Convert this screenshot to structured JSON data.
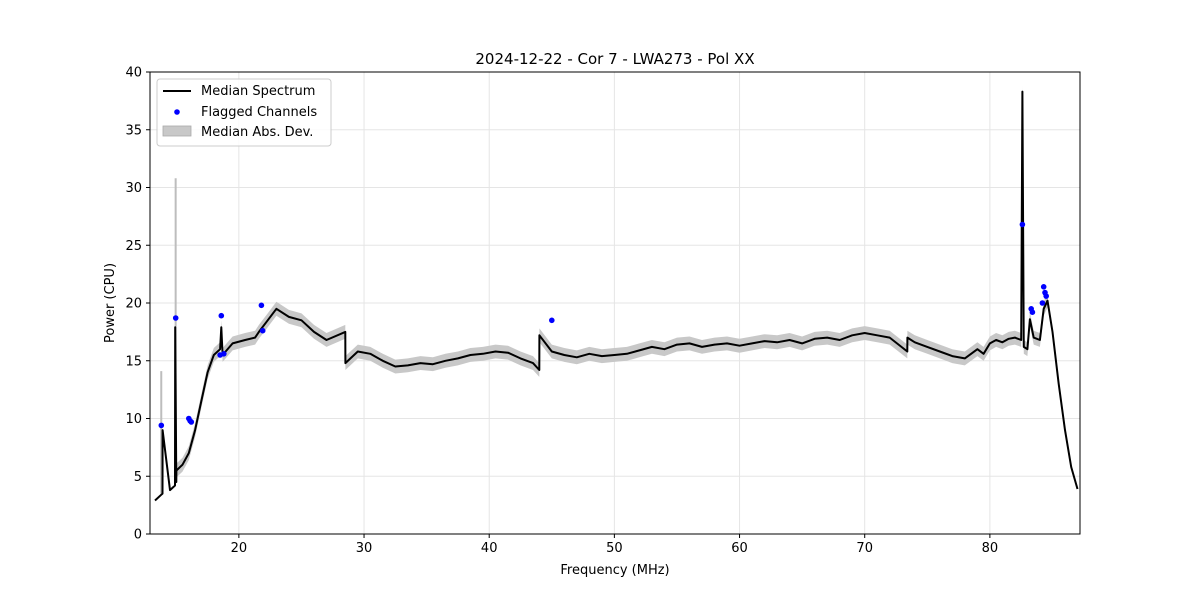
{
  "chart_data": {
    "type": "line",
    "title": "2024-12-22 - Cor 7 - LWA273 - Pol XX",
    "xlabel": "Frequency (MHz)",
    "ylabel": "Power (CPU)",
    "xlim": [
      12.9,
      87.2
    ],
    "ylim": [
      0,
      40
    ],
    "xticks": [
      20,
      30,
      40,
      50,
      60,
      70,
      80
    ],
    "yticks": [
      0,
      5,
      10,
      15,
      20,
      25,
      30,
      35,
      40
    ],
    "grid": true,
    "legend_position": "top-left",
    "legend": [
      "Median Spectrum",
      "Flagged Channels",
      "Median Abs. Dev."
    ],
    "colors": {
      "line": "#000000",
      "flagged": "#0000ff",
      "band": "#c8c8c8",
      "grid": "#e5e5e5"
    },
    "series": [
      {
        "name": "Median Spectrum",
        "x": [
          13.3,
          13.8,
          13.9,
          13.91,
          14.5,
          14.9,
          14.91,
          15.0,
          15.01,
          15.5,
          16.0,
          16.5,
          17.0,
          17.5,
          18.0,
          18.5,
          18.6,
          18.7,
          19.5,
          20.5,
          21.3,
          21.6,
          22.3,
          23.0,
          24.0,
          25.0,
          26.0,
          27.0,
          28.5,
          28.51,
          29.5,
          30.5,
          31.5,
          32.5,
          33.5,
          34.5,
          35.5,
          36.5,
          37.5,
          38.5,
          39.5,
          40.5,
          41.5,
          42.5,
          43.5,
          44.0,
          44.01,
          45.0,
          46.0,
          47.0,
          48.0,
          49.0,
          50.0,
          51.0,
          52.0,
          53.0,
          54.0,
          55.0,
          56.0,
          57.0,
          58.0,
          59.0,
          60.0,
          61.0,
          62.0,
          63.0,
          64.0,
          65.0,
          66.0,
          67.0,
          68.0,
          69.0,
          70.0,
          71.0,
          72.0,
          73.4,
          73.41,
          74.0,
          75.0,
          76.0,
          77.0,
          78.0,
          79.0,
          79.5,
          80.0,
          80.5,
          81.0,
          81.5,
          82.0,
          82.5,
          82.6,
          82.7,
          82.71,
          83.0,
          83.2,
          83.5,
          84.0,
          84.3,
          84.6,
          85.0,
          85.5,
          86.0,
          86.5,
          87.0
        ],
        "y": [
          2.9,
          3.4,
          3.5,
          9.0,
          3.8,
          4.2,
          17.9,
          4.5,
          5.5,
          6.0,
          7.0,
          9.0,
          11.5,
          14.0,
          15.5,
          16.0,
          17.9,
          15.5,
          16.5,
          16.8,
          17.0,
          17.5,
          18.5,
          19.5,
          18.8,
          18.5,
          17.5,
          16.8,
          17.5,
          14.8,
          15.8,
          15.6,
          15.0,
          14.5,
          14.6,
          14.8,
          14.7,
          15.0,
          15.2,
          15.5,
          15.6,
          15.8,
          15.7,
          15.2,
          14.8,
          14.2,
          17.2,
          15.8,
          15.5,
          15.3,
          15.6,
          15.4,
          15.5,
          15.6,
          15.9,
          16.2,
          16.0,
          16.4,
          16.5,
          16.2,
          16.4,
          16.5,
          16.3,
          16.5,
          16.7,
          16.6,
          16.8,
          16.5,
          16.9,
          17.0,
          16.8,
          17.2,
          17.4,
          17.2,
          17.0,
          15.8,
          17.0,
          16.6,
          16.2,
          15.8,
          15.4,
          15.2,
          16.0,
          15.6,
          16.5,
          16.8,
          16.6,
          16.9,
          17.0,
          16.8,
          38.3,
          17.0,
          16.2,
          16.0,
          18.6,
          17.0,
          16.8,
          19.5,
          20.2,
          17.5,
          13.0,
          9.0,
          5.8,
          3.9
        ]
      },
      {
        "name": "Flagged Channels",
        "x": [
          13.8,
          14.95,
          16.0,
          16.1,
          16.2,
          18.5,
          18.6,
          18.8,
          21.8,
          21.9,
          45.0,
          82.6,
          83.3,
          83.4,
          84.2,
          84.3,
          84.4,
          84.5
        ],
        "y": [
          9.4,
          18.7,
          10.0,
          9.8,
          9.7,
          15.5,
          18.9,
          15.6,
          19.8,
          17.6,
          18.5,
          26.8,
          19.5,
          19.2,
          20.0,
          21.4,
          20.9,
          20.6
        ]
      },
      {
        "name": "Median Abs. Dev.",
        "half_width": 0.6,
        "spikes": [
          {
            "x": 13.8,
            "low": 3.5,
            "high": 14.1
          },
          {
            "x": 14.95,
            "low": 4.5,
            "high": 30.8
          }
        ]
      }
    ]
  }
}
